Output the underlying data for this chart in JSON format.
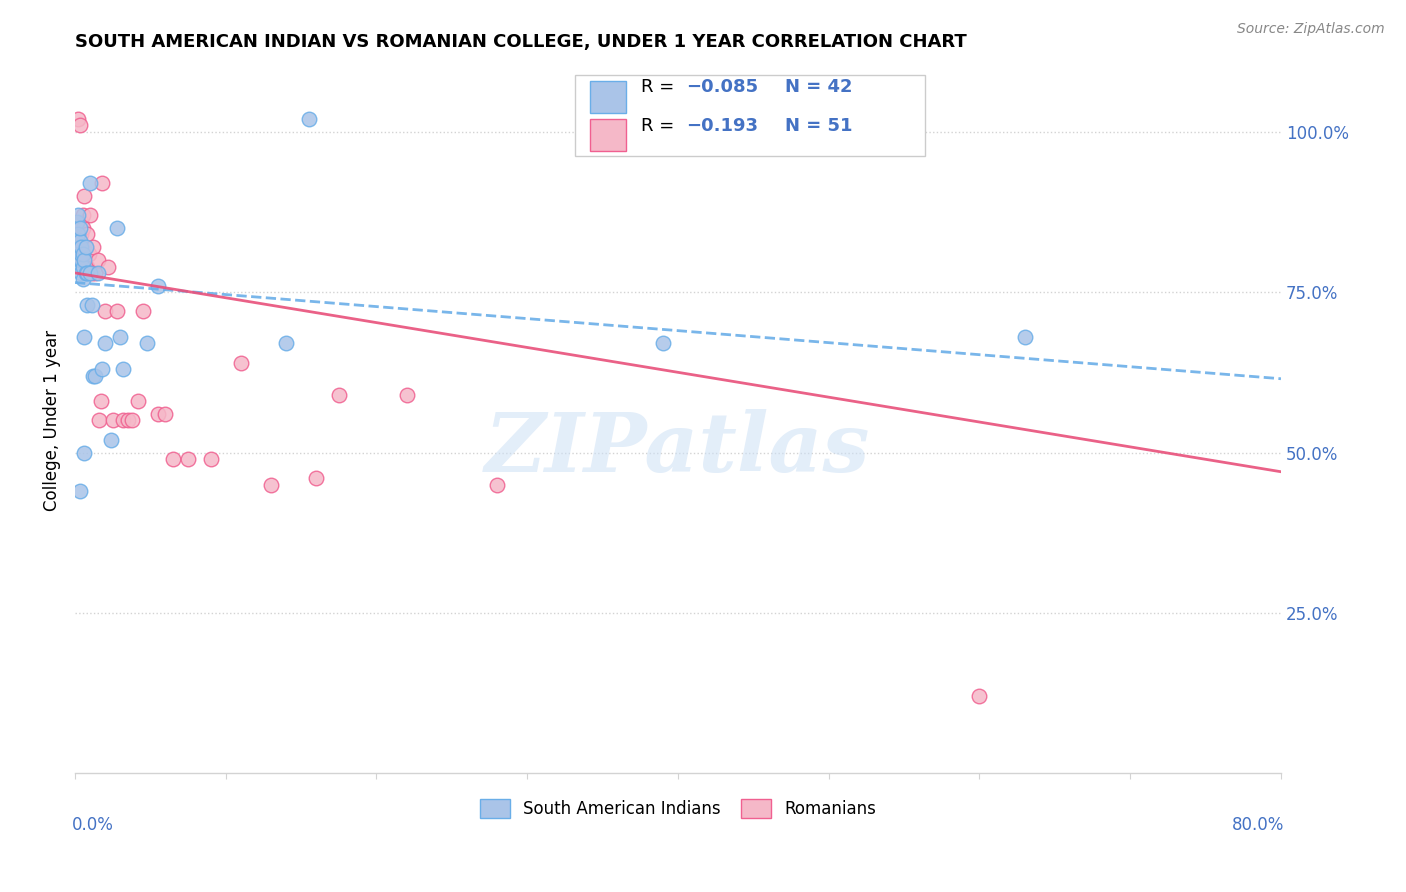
{
  "title": "SOUTH AMERICAN INDIAN VS ROMANIAN COLLEGE, UNDER 1 YEAR CORRELATION CHART",
  "source": "Source: ZipAtlas.com",
  "ylabel": "College, Under 1 year",
  "right_yticks": [
    0.0,
    0.25,
    0.5,
    0.75,
    1.0
  ],
  "right_yticklabels": [
    "",
    "25.0%",
    "50.0%",
    "75.0%",
    "100.0%"
  ],
  "legend_labels": [
    "South American Indians",
    "Romanians"
  ],
  "color_blue": "#aac4e8",
  "color_pink": "#f5b8c8",
  "color_blue_edge": "#6aaee8",
  "color_pink_edge": "#f06090",
  "color_blue_line": "#6aaee8",
  "color_pink_line": "#e8507a",
  "watermark": "ZIPatlas",
  "blue_x": [
    0.001,
    0.001,
    0.002,
    0.002,
    0.003,
    0.003,
    0.003,
    0.003,
    0.003,
    0.004,
    0.004,
    0.004,
    0.004,
    0.005,
    0.005,
    0.005,
    0.006,
    0.006,
    0.007,
    0.007,
    0.008,
    0.008,
    0.01,
    0.01,
    0.011,
    0.012,
    0.013,
    0.015,
    0.018,
    0.02,
    0.024,
    0.028,
    0.03,
    0.032,
    0.048,
    0.055,
    0.14,
    0.155,
    0.39,
    0.63,
    0.003,
    0.006
  ],
  "blue_y": [
    0.83,
    0.86,
    0.84,
    0.87,
    0.79,
    0.8,
    0.82,
    0.83,
    0.85,
    0.78,
    0.8,
    0.81,
    0.82,
    0.77,
    0.79,
    0.81,
    0.68,
    0.8,
    0.78,
    0.82,
    0.73,
    0.78,
    0.92,
    0.78,
    0.73,
    0.62,
    0.62,
    0.78,
    0.63,
    0.67,
    0.52,
    0.85,
    0.68,
    0.63,
    0.67,
    0.76,
    0.67,
    1.02,
    0.67,
    0.68,
    0.44,
    0.5
  ],
  "pink_x": [
    0.001,
    0.001,
    0.002,
    0.002,
    0.002,
    0.003,
    0.003,
    0.003,
    0.004,
    0.004,
    0.004,
    0.005,
    0.005,
    0.005,
    0.006,
    0.006,
    0.007,
    0.007,
    0.008,
    0.008,
    0.009,
    0.01,
    0.011,
    0.012,
    0.013,
    0.015,
    0.016,
    0.017,
    0.018,
    0.02,
    0.022,
    0.025,
    0.028,
    0.032,
    0.035,
    0.038,
    0.042,
    0.045,
    0.055,
    0.06,
    0.065,
    0.075,
    0.09,
    0.11,
    0.13,
    0.16,
    0.175,
    0.22,
    0.28,
    0.6,
    0.001
  ],
  "pink_y": [
    0.82,
    0.85,
    0.81,
    0.84,
    1.02,
    0.82,
    0.85,
    1.01,
    0.81,
    0.84,
    0.86,
    0.82,
    0.85,
    0.87,
    0.8,
    0.9,
    0.79,
    0.82,
    0.79,
    0.84,
    0.81,
    0.87,
    0.78,
    0.82,
    0.78,
    0.8,
    0.55,
    0.58,
    0.92,
    0.72,
    0.79,
    0.55,
    0.72,
    0.55,
    0.55,
    0.55,
    0.58,
    0.72,
    0.56,
    0.56,
    0.49,
    0.49,
    0.49,
    0.64,
    0.45,
    0.46,
    0.59,
    0.59,
    0.45,
    0.12,
    0.82
  ],
  "xlim": [
    0.0,
    0.8
  ],
  "ylim": [
    0.0,
    1.1
  ],
  "blue_trend_x": [
    0.0,
    0.8
  ],
  "blue_trend_y": [
    0.765,
    0.615
  ],
  "pink_trend_x": [
    0.0,
    0.8
  ],
  "pink_trend_y": [
    0.78,
    0.47
  ]
}
